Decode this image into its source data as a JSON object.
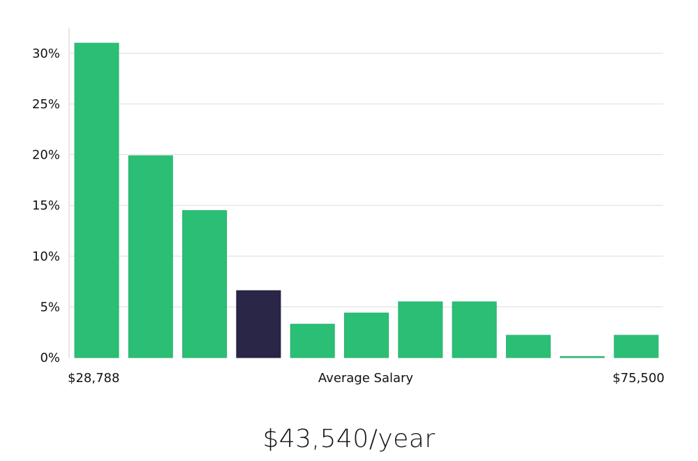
{
  "colors": {
    "bar": "#2bbf76",
    "highlight": "#2a2647",
    "grid": "#dcdcdc",
    "axis": "#cccccc"
  },
  "chart_data": {
    "type": "bar",
    "categories": [
      "b1",
      "b2",
      "b3",
      "b4",
      "b5",
      "b6",
      "b7",
      "b8",
      "b9",
      "b10",
      "b11"
    ],
    "values": [
      31.0,
      19.9,
      14.5,
      6.6,
      3.3,
      4.4,
      5.5,
      5.5,
      2.2,
      0.1,
      2.2
    ],
    "highlight_index": 3,
    "ylim": [
      0,
      32.5
    ],
    "y_ticks": [
      0,
      5,
      10,
      15,
      20,
      25,
      30
    ],
    "y_tick_labels": [
      "0%",
      "5%",
      "10%",
      "15%",
      "20%",
      "25%",
      "30%"
    ],
    "x_min_label": "$28,788",
    "x_center_label": "Average Salary",
    "x_max_label": "$75,500",
    "grid": true
  },
  "salary_text": "$43,540/year"
}
